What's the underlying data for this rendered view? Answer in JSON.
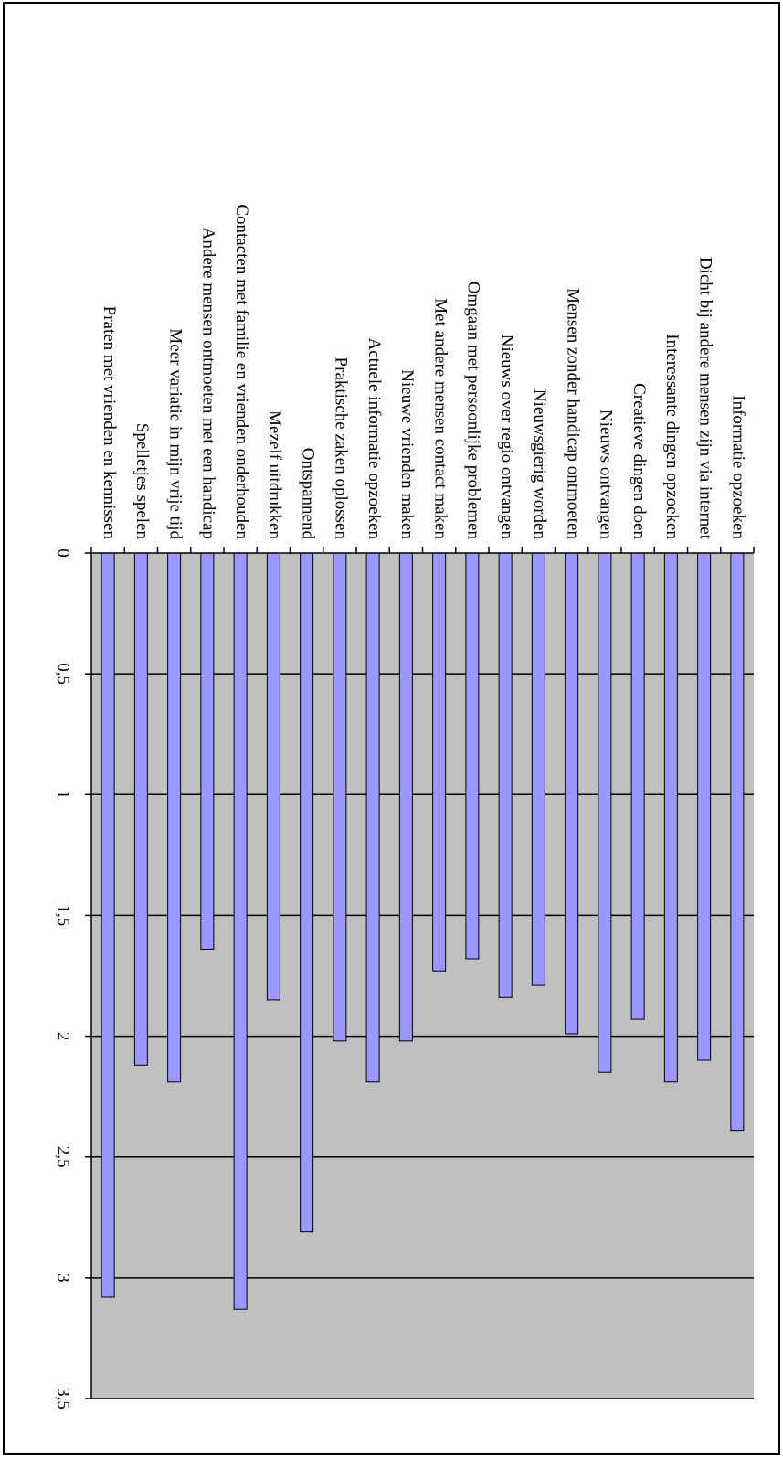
{
  "chart_data": {
    "type": "bar",
    "orientation": "rotated",
    "categories": [
      "Informatie opzoeken",
      "Dicht bij andere mensen zijn via internet",
      "Interessante dingen opzoeken",
      "Creatieve dingen doen",
      "Nieuws ontvangen",
      "Mensen zonder handicap ontmoeten",
      "Nieuwsgierig worden",
      "Nieuws over regio ontvangen",
      "Omgaan met persoonlijke problemen",
      "Met andere mensen contact maken",
      "Nieuwe vrienden maken",
      "Actuele informatie opzoeken",
      "Praktische zaken oplossen",
      "Ontspannend",
      "Mezelf uitdrukken",
      "Contacten met familie en vrienden onderhouden",
      "Andere mensen ontmoeten met een handicap",
      "Meer variatie in mijn vrije tijd",
      "Spelletjes spelen",
      "Praten met vrienden en kennissen"
    ],
    "values": [
      2.39,
      2.1,
      2.19,
      1.93,
      2.15,
      1.99,
      1.79,
      1.84,
      1.68,
      1.73,
      2.02,
      2.19,
      2.02,
      2.81,
      1.85,
      3.13,
      1.64,
      2.19,
      2.12,
      3.08
    ],
    "color": "#9999ff",
    "ylim": [
      0,
      3.5
    ],
    "yticks": [
      0,
      {
        "value": 0.5,
        "label": "0,5"
      },
      1,
      {
        "value": 1.5,
        "label": "1,5"
      },
      2,
      {
        "value": 2.5,
        "label": "2,5"
      },
      3,
      {
        "value": 3.5,
        "label": "3,5"
      }
    ],
    "grid": true
  }
}
